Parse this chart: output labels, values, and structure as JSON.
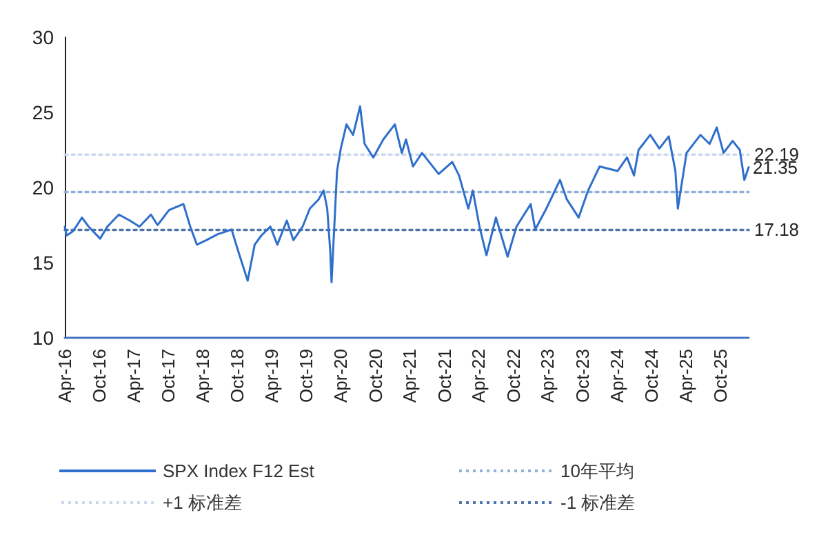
{
  "chart_data": {
    "type": "line",
    "marker": "none",
    "grid": false,
    "legend": "bottom",
    "ylim": [
      10,
      30
    ],
    "yticks": [
      10,
      15,
      20,
      25,
      30
    ],
    "xlim": [
      "2016-04-01",
      "2026-02-28"
    ],
    "xticks": [
      {
        "value": "2016-04-01",
        "label": "Apr-16"
      },
      {
        "value": "2016-10-01",
        "label": "Oct-16"
      },
      {
        "value": "2017-04-01",
        "label": "Apr-17"
      },
      {
        "value": "2017-10-01",
        "label": "Oct-17"
      },
      {
        "value": "2018-04-01",
        "label": "Apr-18"
      },
      {
        "value": "2018-10-01",
        "label": "Oct-18"
      },
      {
        "value": "2019-04-01",
        "label": "Apr-19"
      },
      {
        "value": "2019-10-01",
        "label": "Oct-19"
      },
      {
        "value": "2020-04-01",
        "label": "Apr-20"
      },
      {
        "value": "2020-10-01",
        "label": "Oct-20"
      },
      {
        "value": "2021-04-01",
        "label": "Apr-21"
      },
      {
        "value": "2021-10-01",
        "label": "Oct-21"
      },
      {
        "value": "2022-04-01",
        "label": "Apr-22"
      },
      {
        "value": "2022-10-01",
        "label": "Oct-22"
      },
      {
        "value": "2023-04-01",
        "label": "Apr-23"
      },
      {
        "value": "2023-10-01",
        "label": "Oct-23"
      },
      {
        "value": "2024-04-01",
        "label": "Apr-24"
      },
      {
        "value": "2024-10-01",
        "label": "Oct-24"
      },
      {
        "value": "2025-04-01",
        "label": "Apr-25"
      },
      {
        "value": "2025-10-01",
        "label": "Oct-25"
      }
    ],
    "annotations": [
      {
        "text": "21.35",
        "x": "2026-02-28",
        "y": 21.35
      }
    ],
    "series": [
      {
        "name": "SPX Index F12 Est",
        "color": "#2f6fcc",
        "line_style": "solid",
        "x": [
          "2016-04-01",
          "2016-04-10",
          "2016-05-15",
          "2016-07-01",
          "2016-08-05",
          "2016-10-05",
          "2016-11-12",
          "2017-01-12",
          "2017-03-12",
          "2017-05-01",
          "2017-07-01",
          "2017-08-05",
          "2017-10-05",
          "2017-12-20",
          "2018-01-25",
          "2018-03-01",
          "2018-04-20",
          "2018-06-20",
          "2018-09-01",
          "2018-10-05",
          "2018-11-25",
          "2019-01-01",
          "2019-02-05",
          "2019-03-25",
          "2019-05-01",
          "2019-06-20",
          "2019-07-25",
          "2019-09-12",
          "2019-10-20",
          "2019-12-05",
          "2020-01-01",
          "2020-01-20",
          "2020-02-05",
          "2020-02-12",
          "2020-03-12",
          "2020-04-01",
          "2020-05-01",
          "2020-06-05",
          "2020-07-12",
          "2020-08-05",
          "2020-09-20",
          "2020-11-12",
          "2021-01-12",
          "2021-02-18",
          "2021-03-12",
          "2021-04-18",
          "2021-06-05",
          "2021-09-01",
          "2021-11-12",
          "2021-12-18",
          "2022-02-05",
          "2022-03-01",
          "2022-04-05",
          "2022-05-12",
          "2022-07-01",
          "2022-09-01",
          "2022-10-18",
          "2023-01-01",
          "2023-01-25",
          "2023-03-25",
          "2023-06-05",
          "2023-07-12",
          "2023-09-12",
          "2023-11-01",
          "2024-01-01",
          "2024-04-05",
          "2024-05-25",
          "2024-07-01",
          "2024-07-25",
          "2024-09-25",
          "2024-11-12",
          "2025-01-01",
          "2025-02-05",
          "2025-02-18",
          "2025-04-05",
          "2025-06-18",
          "2025-08-05",
          "2025-09-12",
          "2025-10-18",
          "2025-12-05",
          "2026-01-12",
          "2026-02-05",
          "2026-02-28"
        ],
        "values": [
          17.4,
          16.8,
          17.1,
          18.0,
          17.4,
          16.6,
          17.4,
          18.2,
          17.8,
          17.4,
          18.2,
          17.5,
          18.5,
          18.9,
          17.4,
          16.2,
          16.5,
          16.9,
          17.2,
          15.8,
          13.8,
          16.2,
          16.8,
          17.4,
          16.2,
          17.8,
          16.5,
          17.4,
          18.6,
          19.2,
          19.8,
          18.6,
          15.8,
          13.7,
          21.1,
          22.6,
          24.2,
          23.5,
          25.4,
          22.9,
          22.0,
          23.2,
          24.2,
          22.3,
          23.2,
          21.4,
          22.3,
          20.9,
          21.7,
          20.8,
          18.6,
          19.8,
          17.4,
          15.5,
          18.0,
          15.4,
          17.4,
          18.9,
          17.2,
          18.6,
          20.5,
          19.2,
          18.0,
          19.8,
          21.4,
          21.1,
          22.0,
          20.8,
          22.5,
          23.5,
          22.6,
          23.4,
          21.1,
          18.6,
          22.3,
          23.5,
          22.9,
          24.0,
          22.3,
          23.1,
          22.5,
          20.5,
          21.35
        ]
      },
      {
        "name": "10年平均",
        "color": "#8fb0d8",
        "line_style": "dotted",
        "x": [
          "2016-04-01",
          "2026-02-28"
        ],
        "values": [
          19.7,
          19.7
        ]
      },
      {
        "name": "+1 标准差",
        "color": "#cbd9ec",
        "line_style": "dotted",
        "x": [
          "2016-04-01",
          "2026-02-28"
        ],
        "values": [
          22.19,
          22.19
        ],
        "value_labels": [
          null,
          "22.19"
        ]
      },
      {
        "name": "-1 标准差",
        "color": "#4f74a8",
        "line_style": "dotted",
        "x": [
          "2016-04-01",
          "2026-02-28"
        ],
        "values": [
          17.18,
          17.18
        ],
        "value_labels": [
          null,
          "17.18"
        ]
      }
    ]
  }
}
